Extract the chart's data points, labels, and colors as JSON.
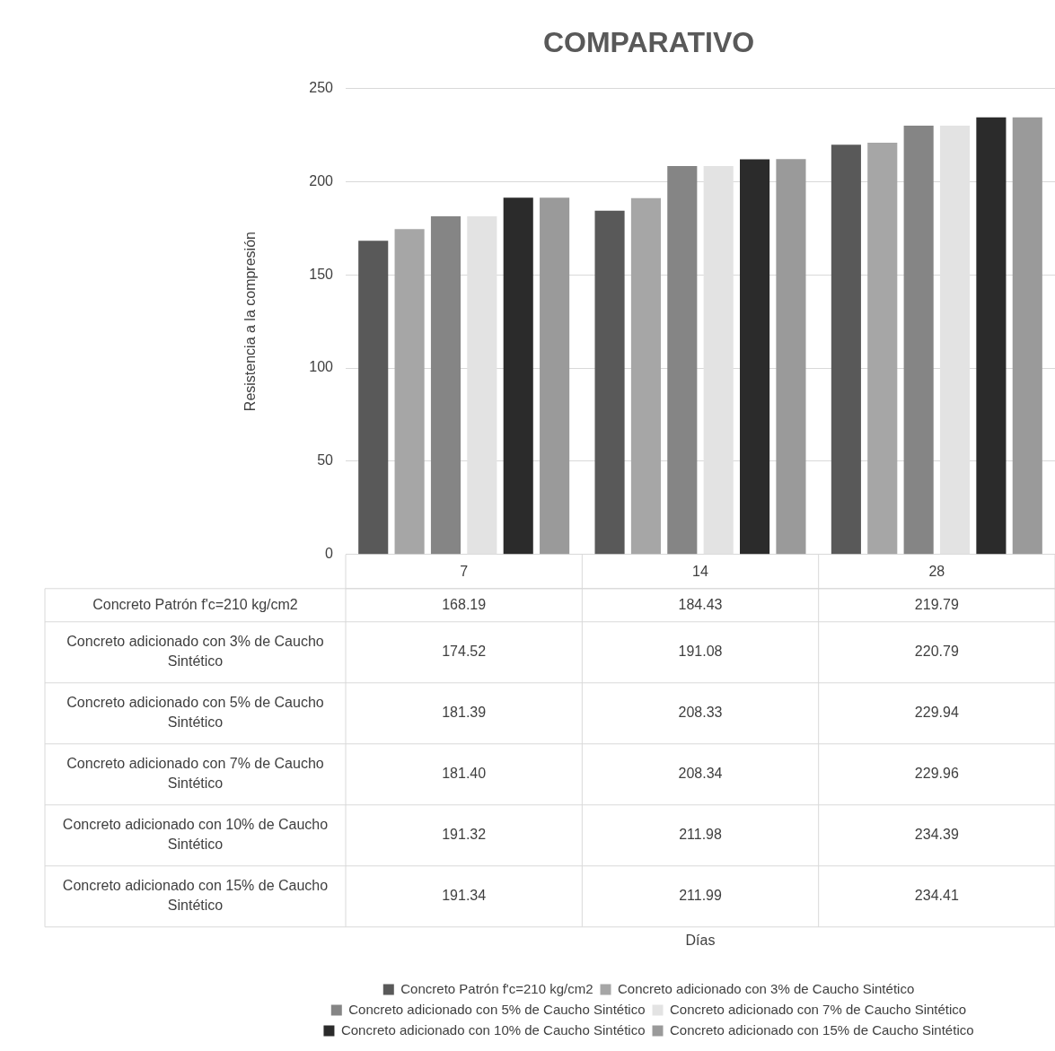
{
  "chart_data": {
    "type": "bar",
    "title": "COMPARATIVO",
    "annotations": [
      "Días"
    ],
    "ylabel": "Resistencia a la compresión",
    "categories": [
      "7",
      "14",
      "28"
    ],
    "ylim": [
      0,
      250
    ],
    "yticks": [
      0,
      50,
      100,
      150,
      200,
      250
    ],
    "grid": "y",
    "legend": "bottom",
    "series": [
      {
        "name": "Concreto Patrón f'c=210 kg/cm2",
        "color": "#595959",
        "values": [
          168.19,
          184.43,
          219.79
        ],
        "value_labels": [
          "168.19",
          "184.43",
          "219.79"
        ]
      },
      {
        "name": "Concreto adicionado con 3% de Caucho Sintético",
        "color": "#a6a6a6",
        "values": [
          174.52,
          191.08,
          220.79
        ],
        "value_labels": [
          "174.52",
          "191.08",
          "220.79"
        ]
      },
      {
        "name": "Concreto adicionado con 5% de Caucho Sintético",
        "color": "#858585",
        "values": [
          181.39,
          208.33,
          229.94
        ],
        "value_labels": [
          "181.39",
          "208.33",
          "229.94"
        ]
      },
      {
        "name": "Concreto adicionado con 7% de Caucho Sintético",
        "color": "#e3e3e3",
        "values": [
          181.4,
          208.34,
          229.96
        ],
        "value_labels": [
          "181.40",
          "208.34",
          "229.96"
        ]
      },
      {
        "name": "Concreto adicionado con 10% de Caucho Sintético",
        "color": "#2b2b2b",
        "values": [
          191.32,
          211.98,
          234.39
        ],
        "value_labels": [
          "191.32",
          "211.98",
          "234.39"
        ]
      },
      {
        "name": "Concreto adicionado con 15% de Caucho Sintético",
        "color": "#9a9a9a",
        "values": [
          191.34,
          211.99,
          234.41
        ],
        "value_labels": [
          "191.34",
          "211.99",
          "234.41"
        ]
      }
    ]
  }
}
